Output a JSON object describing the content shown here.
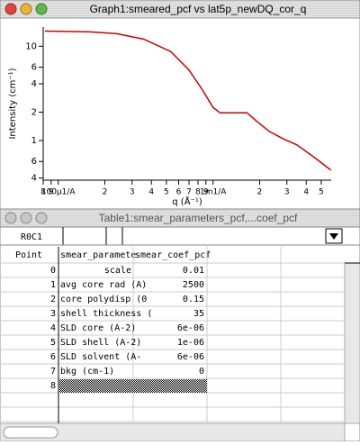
{
  "graph": {
    "window_title": "Graph1:smeared_pcf vs lat5p_newDQ_cor_q",
    "chart_data": {
      "type": "line",
      "xlabel": "q (Å⁻¹)",
      "ylabel": "Intensity (cm⁻¹)",
      "xlog": true,
      "ylog": true,
      "color": "#cc0000",
      "x": [
        8.2e-05,
        0.00016,
        0.000239,
        0.000357,
        0.000533,
        0.000697,
        0.00085,
        0.001,
        0.00111,
        0.00136,
        0.00166,
        0.0019,
        0.00231,
        0.00285,
        0.00348,
        0.00453,
        0.00578
      ],
      "values": [
        14.5,
        14.2,
        13.6,
        11.9,
        8.8,
        5.65,
        3.5,
        2.25,
        1.97,
        1.97,
        1.97,
        1.62,
        1.25,
        1.04,
        0.9,
        0.66,
        0.485
      ],
      "xlim": [
        8e-05,
        0.0058
      ],
      "ylim": [
        0.38,
        16
      ],
      "xticks": [
        {
          "value": 8e-05,
          "label": "8"
        },
        {
          "value": 9e-05,
          "label": "9"
        },
        {
          "value": 0.0001,
          "label": "100µ1/A"
        },
        {
          "value": 0.0002,
          "label": "2"
        },
        {
          "value": 0.0003,
          "label": "3"
        },
        {
          "value": 0.0004,
          "label": "4"
        },
        {
          "value": 0.0005,
          "label": "5"
        },
        {
          "value": 0.0006,
          "label": "6"
        },
        {
          "value": 0.0007,
          "label": "7"
        },
        {
          "value": 0.0008,
          "label": "8"
        },
        {
          "value": 0.0009,
          "label": "9"
        },
        {
          "value": 0.001,
          "label": "1m1/A"
        },
        {
          "value": 0.002,
          "label": "2"
        },
        {
          "value": 0.003,
          "label": "3"
        },
        {
          "value": 0.004,
          "label": "4"
        },
        {
          "value": 0.005,
          "label": "5"
        }
      ],
      "yticks": [
        10,
        {
          "value": 6,
          "label": "6"
        },
        4,
        2,
        1,
        {
          "value": 0.6,
          "label": "6"
        },
        {
          "value": 0.4,
          "label": "4"
        }
      ]
    }
  },
  "table": {
    "window_title": "Table1:smear_parameters_pcf,...coef_pcf",
    "entry_cell": "R0C1",
    "columns": [
      "Point",
      "smear_paramete",
      "smear_coef_pcf"
    ],
    "rows": [
      [
        0,
        "scale",
        "0.01"
      ],
      [
        1,
        "avg core rad (A)",
        "2500"
      ],
      [
        2,
        "core polydisp (0",
        "0.15"
      ],
      [
        3,
        "shell thickness (",
        "35"
      ],
      [
        4,
        "SLD core (A-2)",
        "6e-06"
      ],
      [
        5,
        "SLD shell (A-2)",
        "1e-06"
      ],
      [
        6,
        "SLD solvent (A-",
        "6e-06"
      ],
      [
        7,
        "bkg (cm-1)",
        "0"
      ],
      [
        8
      ]
    ]
  }
}
